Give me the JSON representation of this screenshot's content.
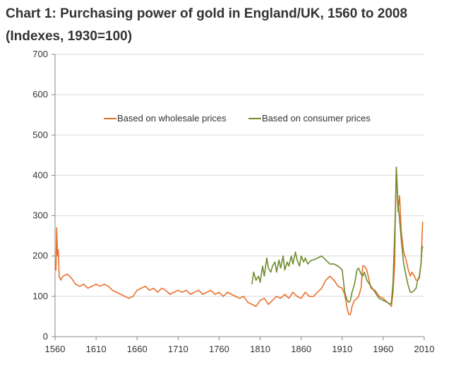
{
  "chart_data": {
    "type": "line",
    "title": "Chart 1: Purchasing power of gold in England/UK, 1560 to 2008 (Indexes, 1930=100)",
    "xlabel": "",
    "ylabel": "",
    "xlim": [
      1560,
      2010
    ],
    "ylim": [
      0,
      700
    ],
    "xticks": [
      "1560",
      "1610",
      "1660",
      "1710",
      "1760",
      "1810",
      "1860",
      "1910",
      "1960",
      "2010"
    ],
    "yticks": [
      "0",
      "100",
      "200",
      "300",
      "400",
      "500",
      "600",
      "700"
    ],
    "grid": "horizontal",
    "legend_position": "top",
    "series": [
      {
        "name": "Based on wholesale prices",
        "color": "#e8702a",
        "x": [
          1560,
          1561,
          1562,
          1563,
          1564,
          1565,
          1566,
          1567,
          1568,
          1570,
          1575,
          1580,
          1585,
          1590,
          1595,
          1600,
          1605,
          1610,
          1615,
          1620,
          1625,
          1630,
          1635,
          1640,
          1645,
          1650,
          1655,
          1660,
          1665,
          1670,
          1675,
          1680,
          1685,
          1690,
          1695,
          1700,
          1705,
          1710,
          1715,
          1720,
          1725,
          1730,
          1735,
          1740,
          1745,
          1750,
          1755,
          1760,
          1765,
          1770,
          1775,
          1780,
          1785,
          1790,
          1795,
          1800,
          1805,
          1810,
          1815,
          1820,
          1825,
          1830,
          1835,
          1840,
          1845,
          1850,
          1855,
          1860,
          1865,
          1870,
          1875,
          1880,
          1885,
          1890,
          1895,
          1900,
          1905,
          1910,
          1913,
          1916,
          1918,
          1920,
          1922,
          1925,
          1928,
          1930,
          1933,
          1935,
          1937,
          1940,
          1945,
          1950,
          1955,
          1960,
          1965,
          1968,
          1970,
          1972,
          1974,
          1975,
          1976,
          1978,
          1980,
          1982,
          1985,
          1988,
          1990,
          1993,
          1995,
          1998,
          2000,
          2002,
          2004,
          2006,
          2007,
          2008
        ],
        "values": [
          175,
          165,
          270,
          200,
          215,
          150,
          145,
          140,
          145,
          150,
          155,
          145,
          130,
          125,
          130,
          120,
          125,
          130,
          125,
          130,
          125,
          115,
          110,
          105,
          100,
          95,
          100,
          115,
          120,
          125,
          115,
          120,
          110,
          120,
          115,
          105,
          110,
          115,
          110,
          115,
          105,
          110,
          115,
          105,
          110,
          115,
          105,
          110,
          100,
          110,
          105,
          100,
          95,
          100,
          85,
          80,
          75,
          90,
          95,
          80,
          90,
          100,
          95,
          105,
          95,
          110,
          100,
          95,
          110,
          100,
          100,
          110,
          120,
          140,
          150,
          140,
          125,
          120,
          105,
          70,
          55,
          55,
          75,
          90,
          95,
          100,
          120,
          175,
          175,
          165,
          120,
          115,
          100,
          95,
          85,
          80,
          75,
          110,
          180,
          330,
          420,
          310,
          350,
          260,
          210,
          190,
          170,
          150,
          160,
          150,
          140,
          140,
          145,
          180,
          230,
          285
        ]
      },
      {
        "name": "Based on consumer prices",
        "color": "#6e8b2f",
        "x": [
          1800,
          1802,
          1805,
          1808,
          1810,
          1813,
          1815,
          1818,
          1820,
          1823,
          1825,
          1828,
          1830,
          1833,
          1835,
          1838,
          1840,
          1843,
          1845,
          1848,
          1850,
          1853,
          1855,
          1858,
          1860,
          1863,
          1865,
          1868,
          1870,
          1873,
          1875,
          1880,
          1885,
          1890,
          1895,
          1900,
          1905,
          1910,
          1913,
          1916,
          1918,
          1920,
          1922,
          1925,
          1928,
          1930,
          1933,
          1935,
          1937,
          1940,
          1945,
          1950,
          1955,
          1960,
          1965,
          1968,
          1970,
          1972,
          1974,
          1975,
          1976,
          1978,
          1980,
          1982,
          1985,
          1988,
          1990,
          1993,
          1995,
          1998,
          2000,
          2002,
          2004,
          2006,
          2007,
          2008
        ],
        "values": [
          130,
          160,
          140,
          150,
          135,
          175,
          150,
          195,
          170,
          160,
          175,
          185,
          160,
          190,
          170,
          200,
          165,
          185,
          175,
          200,
          180,
          210,
          190,
          175,
          200,
          185,
          195,
          180,
          185,
          190,
          190,
          195,
          200,
          190,
          180,
          180,
          175,
          165,
          110,
          90,
          85,
          90,
          110,
          130,
          165,
          170,
          155,
          150,
          160,
          140,
          125,
          110,
          95,
          90,
          85,
          80,
          85,
          135,
          260,
          320,
          420,
          330,
          290,
          240,
          180,
          150,
          130,
          110,
          110,
          115,
          120,
          140,
          150,
          180,
          210,
          225
        ]
      }
    ]
  }
}
